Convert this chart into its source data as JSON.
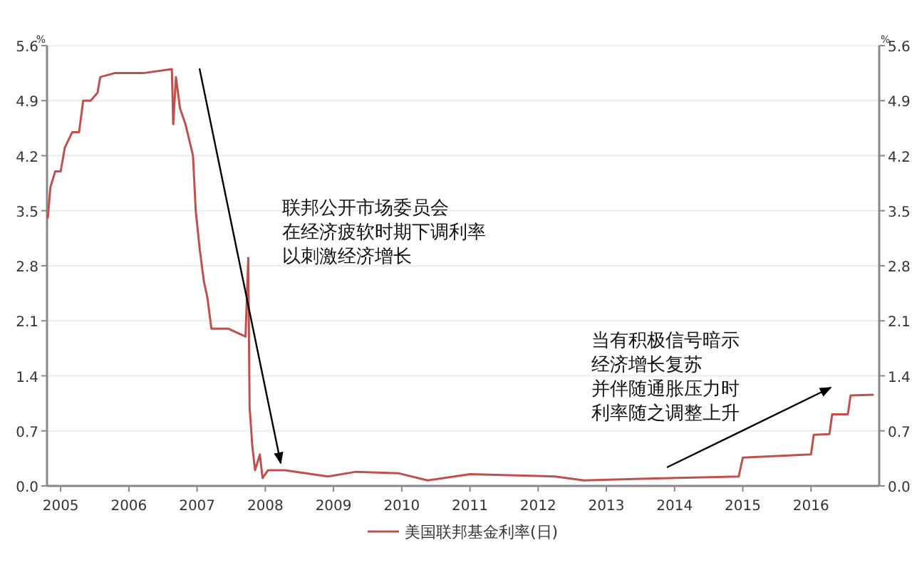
{
  "chart_data": {
    "type": "line",
    "ylabel": "%",
    "y2label": "%",
    "xlim": [
      2004.8,
      2017.0
    ],
    "xticks": [
      2005,
      2006,
      2007,
      2008,
      2009,
      2010,
      2011,
      2012,
      2013,
      2014,
      2015,
      2016
    ],
    "ylim": [
      0,
      5.6
    ],
    "yticks": [
      {
        "value": 0,
        "label": "0.0"
      },
      {
        "value": 0.7,
        "label": "0.7"
      },
      {
        "value": 1.4,
        "label": "1.4"
      },
      {
        "value": 2.1,
        "label": "2.1"
      },
      {
        "value": 2.8,
        "label": "2.8"
      },
      {
        "value": 3.5,
        "label": "3.5"
      },
      {
        "value": 4.2,
        "label": "4.2"
      },
      {
        "value": 4.9,
        "label": "4.9"
      },
      {
        "value": 5.6,
        "label": "5.6"
      }
    ],
    "y2lim": [
      0,
      5.6
    ],
    "y2ticks": [
      {
        "value": 0,
        "label": "0.0"
      },
      {
        "value": 0.7,
        "label": "0.7"
      },
      {
        "value": 1.4,
        "label": "1.4"
      },
      {
        "value": 2.1,
        "label": "2.1"
      },
      {
        "value": 2.8,
        "label": "2.8"
      },
      {
        "value": 3.5,
        "label": "3.5"
      },
      {
        "value": 4.2,
        "label": "4.2"
      },
      {
        "value": 4.9,
        "label": "4.9"
      },
      {
        "value": 5.6,
        "label": "5.6"
      }
    ],
    "grid": "y",
    "legend": "bottom",
    "marker": "none",
    "line_style": "solid",
    "series": [
      {
        "name": "美国联邦基金利率(日)",
        "color": "#c0504d",
        "x": [
          2004.81,
          2004.85,
          2004.92,
          2005.0,
          2005.06,
          2005.17,
          2005.27,
          2005.33,
          2005.44,
          2005.54,
          2005.58,
          2005.79,
          2006.21,
          2006.63,
          2006.65,
          2006.69,
          2006.75,
          2006.83,
          2006.94,
          2006.98,
          2007.04,
          2007.1,
          2007.15,
          2007.21,
          2007.46,
          2007.71,
          2007.75,
          2007.77,
          2007.81,
          2007.85,
          2007.92,
          2007.96,
          2008.04,
          2008.29,
          2008.92,
          2009.33,
          2009.96,
          2010.38,
          2011.0,
          2012.25,
          2012.67,
          2013.5,
          2013.92,
          2014.94,
          2015.0,
          2016.0,
          2016.04,
          2016.27,
          2016.31,
          2016.54,
          2016.58,
          2016.92
        ],
        "values": [
          3.4,
          3.8,
          4.0,
          4.0,
          4.3,
          4.5,
          4.5,
          4.9,
          4.9,
          5.0,
          5.2,
          5.25,
          5.25,
          5.3,
          4.6,
          5.2,
          4.8,
          4.6,
          4.2,
          3.5,
          3.0,
          2.6,
          2.4,
          2.0,
          2.0,
          1.9,
          2.9,
          1.0,
          0.5,
          0.2,
          0.4,
          0.1,
          0.2,
          0.2,
          0.12,
          0.18,
          0.16,
          0.07,
          0.15,
          0.12,
          0.07,
          0.09,
          0.1,
          0.12,
          0.36,
          0.4,
          0.65,
          0.66,
          0.91,
          0.91,
          1.15,
          1.16
        ]
      }
    ],
    "annotations": [
      "联邦公开市场委员会在经济疲软时期下调利率以刺激经济增长",
      "当有积极信号暗示经济增长复苏并伴随通胀压力时利率随之调整上升"
    ]
  }
}
